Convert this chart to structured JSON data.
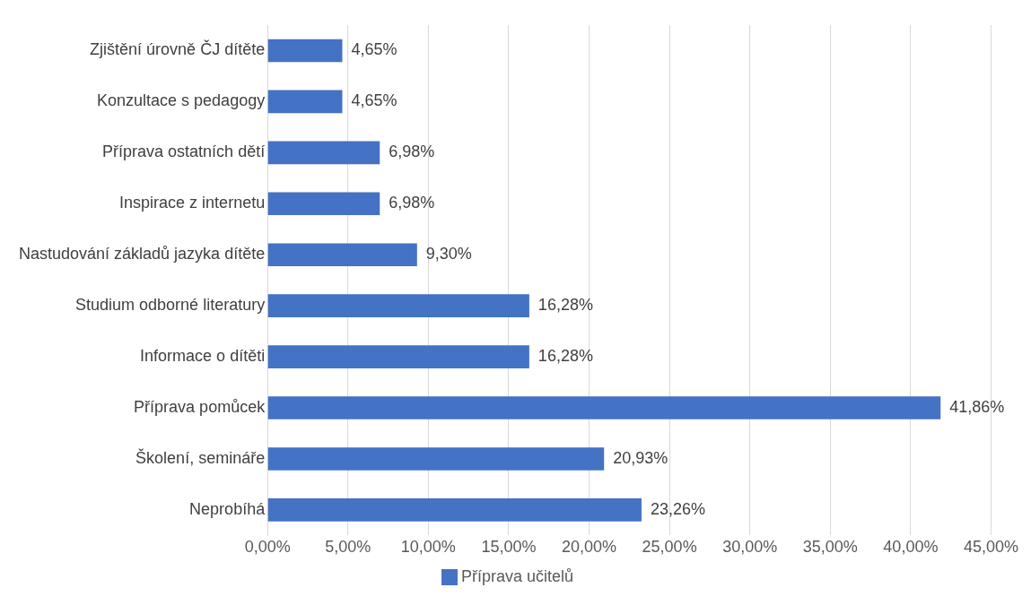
{
  "chart_data": {
    "type": "bar",
    "orientation": "horizontal",
    "categories": [
      "Zjištění úrovně ČJ dítěte",
      "Konzultace s pedagogy",
      "Příprava ostatních dětí",
      "Inspirace z internetu",
      "Nastudování základů jazyka dítěte",
      "Studium odborné literatury",
      "Informace o dítěti",
      "Příprava pomůcek",
      "Školení, semináře",
      "Neprobíhá"
    ],
    "series": [
      {
        "name": "Příprava učitelů",
        "color": "#4472c4",
        "values": [
          4.65,
          4.65,
          6.98,
          6.98,
          9.3,
          16.28,
          16.28,
          41.86,
          20.93,
          23.26
        ],
        "value_labels": [
          "4,65%",
          "4,65%",
          "6,98%",
          "6,98%",
          "9,30%",
          "16,28%",
          "16,28%",
          "41,86%",
          "20,93%",
          "23,26%"
        ]
      }
    ],
    "xlim": [
      0,
      45
    ],
    "xticks": [
      {
        "value": 0,
        "label": "0,00%"
      },
      {
        "value": 5,
        "label": "5,00%"
      },
      {
        "value": 10,
        "label": "10,00%"
      },
      {
        "value": 15,
        "label": "15,00%"
      },
      {
        "value": 20,
        "label": "20,00%"
      },
      {
        "value": 25,
        "label": "25,00%"
      },
      {
        "value": 30,
        "label": "30,00%"
      },
      {
        "value": 35,
        "label": "35,00%"
      },
      {
        "value": 40,
        "label": "40,00%"
      },
      {
        "value": 45,
        "label": "45,00%"
      }
    ],
    "grid": "x",
    "legend": "bottom"
  }
}
